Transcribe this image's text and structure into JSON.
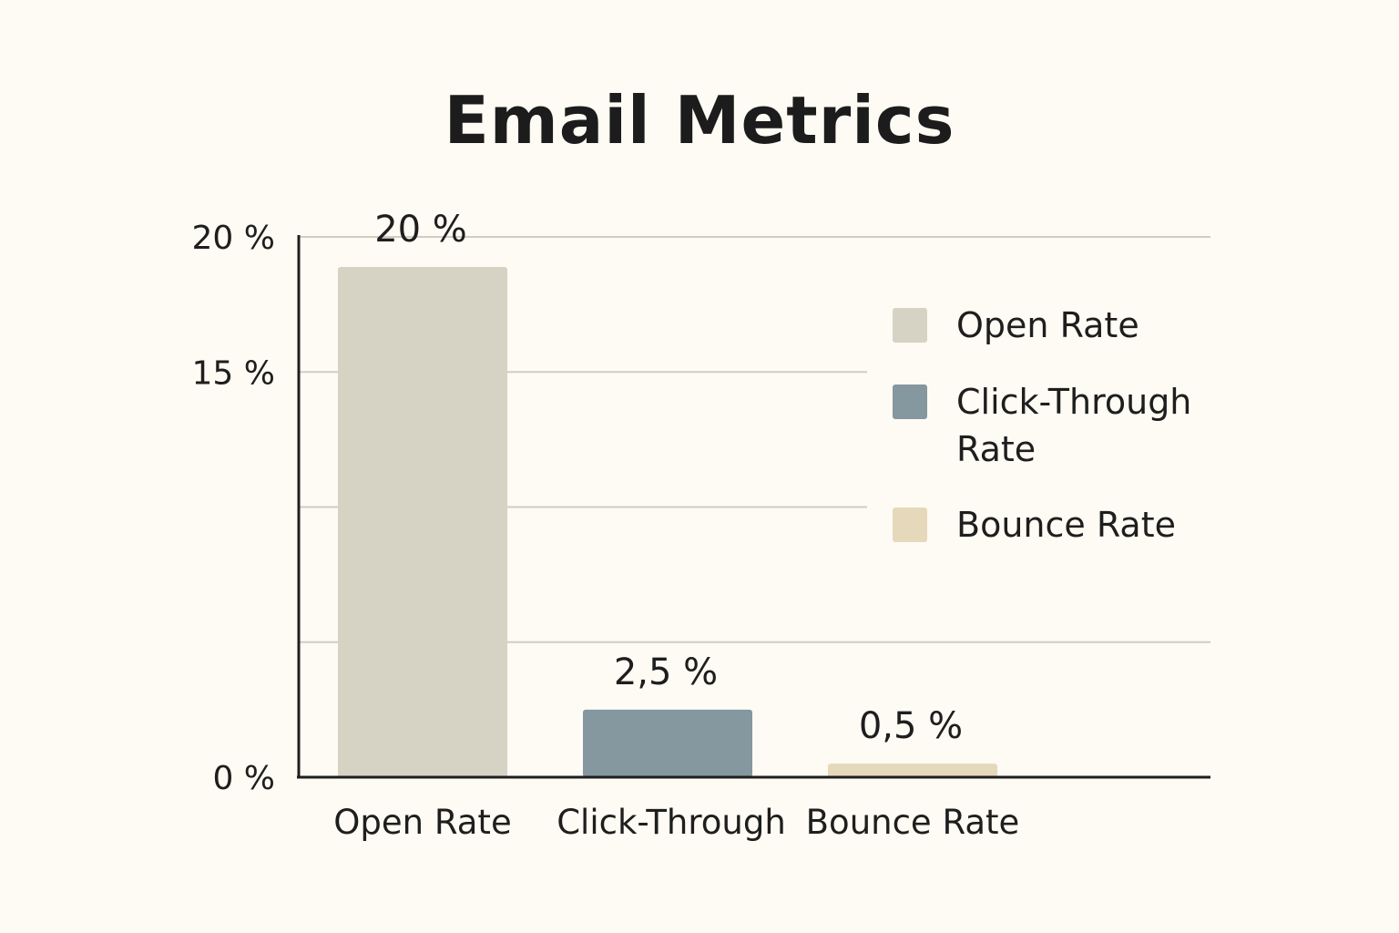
{
  "chart_data": {
    "type": "bar",
    "title": "Email Metrics",
    "xlabel": "",
    "ylabel": "",
    "ylim": [
      0,
      20
    ],
    "grid": true,
    "legend_position": "right",
    "y_ticks": [
      {
        "value": 0,
        "label": "0 %"
      },
      {
        "value": 15,
        "label": "15 %"
      },
      {
        "value": 20,
        "label": "20 %"
      }
    ],
    "gridline_values": [
      5,
      10,
      15,
      20
    ],
    "categories": [
      "Open Rate",
      "Click-Through",
      "Bounce Rate"
    ],
    "values": [
      20,
      2.5,
      0.5
    ],
    "data_labels": [
      "20 %",
      "2,5 %",
      "0,5 %"
    ],
    "colors": [
      "#d6d2c4",
      "#85979f",
      "#e6d8bb"
    ],
    "legend": [
      {
        "lines": [
          "Open Rate"
        ],
        "color": "#d6d2c4"
      },
      {
        "lines": [
          "Click-Through",
          "Rate"
        ],
        "color": "#85979f"
      },
      {
        "lines": [
          "Bounce Rate"
        ],
        "color": "#e6d8bb"
      }
    ]
  }
}
